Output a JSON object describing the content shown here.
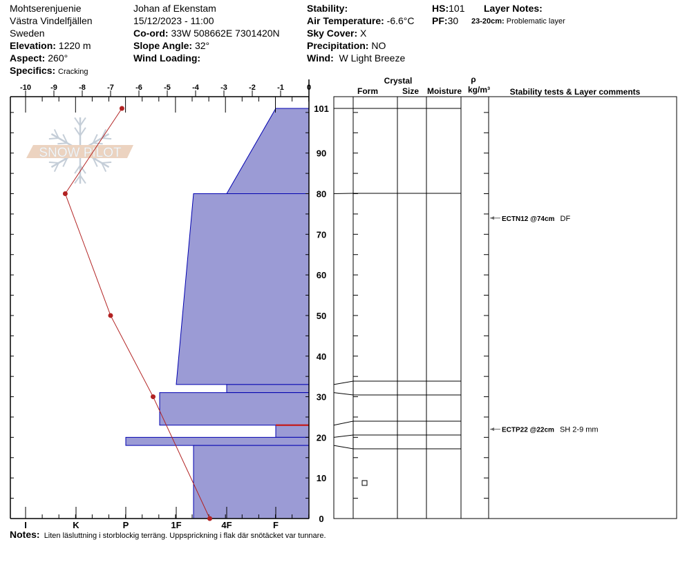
{
  "header": {
    "location": "Mohtserenjuenie",
    "region": "Västra Vindelfjällen",
    "country": "Sweden",
    "elevation_label": "Elevation:",
    "elevation": "1220 m",
    "aspect_label": "Aspect:",
    "aspect": "260°",
    "specifics_label": "Specifics:",
    "specifics": "Cracking",
    "observer": "Johan af Ekenstam",
    "datetime": "15/12/2023 - 11:00",
    "coord_label": "Co-ord:",
    "coord": "33W 508662E 7301420N",
    "slope_label": "Slope Angle:",
    "slope": "32°",
    "wind_loading_label": "Wind Loading:",
    "wind_loading": "",
    "stability_label": "Stability:",
    "stability": "",
    "air_temp_label": "Air Temperature:",
    "air_temp": "-6.6°C",
    "sky_label": "Sky Cover:",
    "sky": "X",
    "precip_label": "Precipitation:",
    "precip": "NO",
    "wind_label": "Wind:",
    "wind": "W Light Breeze",
    "hs_label": "HS:",
    "hs": "101",
    "pf_label": "PF:",
    "pf": "30",
    "layer_notes_label": "Layer Notes:",
    "layer_note_range": "23-20cm:",
    "layer_note_text": "Problematic layer"
  },
  "notes": {
    "label": "Notes:",
    "text": "Liten läsluttning i storblockig terräng. Uppsprickning i flak där snötäcket var tunnare."
  },
  "table_headers": {
    "crystal": "Crystal",
    "form": "Form",
    "size": "Size",
    "moisture": "Moisture",
    "rho": "ρ",
    "density_unit": "kg/m³",
    "comments": "Stability tests & Layer comments"
  },
  "chart_data": {
    "type": "snow-profile",
    "temperature_axis": {
      "ticks": [
        "-10",
        "-9",
        "-8",
        "-7",
        "-6",
        "-5",
        "-4",
        "-3",
        "-2",
        "-1",
        "0"
      ],
      "range": [
        -10,
        0
      ]
    },
    "hardness_axis": {
      "ticks": [
        "I",
        "K",
        "P",
        "1F",
        "4F",
        "F"
      ]
    },
    "depth_axis": {
      "ticks": [
        "0",
        "10",
        "20",
        "30",
        "40",
        "50",
        "60",
        "70",
        "80",
        "90",
        "101"
      ],
      "range": [
        0,
        101
      ],
      "unit": "cm"
    },
    "temperature_profile": [
      {
        "depth": 101,
        "temp": -6.6
      },
      {
        "depth": 80,
        "temp": -8.6
      },
      {
        "depth": 50,
        "temp": -7.0
      },
      {
        "depth": 30,
        "temp": -5.5
      },
      {
        "depth": 0,
        "temp": -3.5
      }
    ],
    "layers": [
      {
        "top": 101,
        "bottom": 80,
        "hardness_top": "F",
        "hardness_bottom": "4F"
      },
      {
        "top": 80,
        "bottom": 33,
        "hardness_top": "1F+",
        "hardness_bottom": "1F"
      },
      {
        "top": 33,
        "bottom": 31,
        "hardness_top": "4F",
        "hardness_bottom": "4F"
      },
      {
        "top": 31,
        "bottom": 23,
        "hardness_top": "1F-",
        "hardness_bottom": "1F-"
      },
      {
        "top": 23,
        "bottom": 20,
        "hardness_top": "F",
        "hardness_bottom": "F",
        "problematic": true
      },
      {
        "top": 20,
        "bottom": 18,
        "hardness_top": "P",
        "hardness_bottom": "P"
      },
      {
        "top": 18,
        "bottom": 0,
        "hardness_top": "1F+",
        "hardness_bottom": "1F+",
        "form": "faceted-square-icon"
      }
    ],
    "colors": {
      "layer_fill": "#9b9bd5",
      "layer_stroke": "#0000b0",
      "temperature": "#b22222",
      "problem_layer": "#c0262a"
    },
    "tests": [
      {
        "depth": 74,
        "code": "ECTN12 @74cm",
        "comment": "DF"
      },
      {
        "depth": 22,
        "code": "ECTP22 @22cm",
        "comment": "SH 2-9 mm"
      }
    ],
    "watermark": "SNOW PILOT"
  }
}
